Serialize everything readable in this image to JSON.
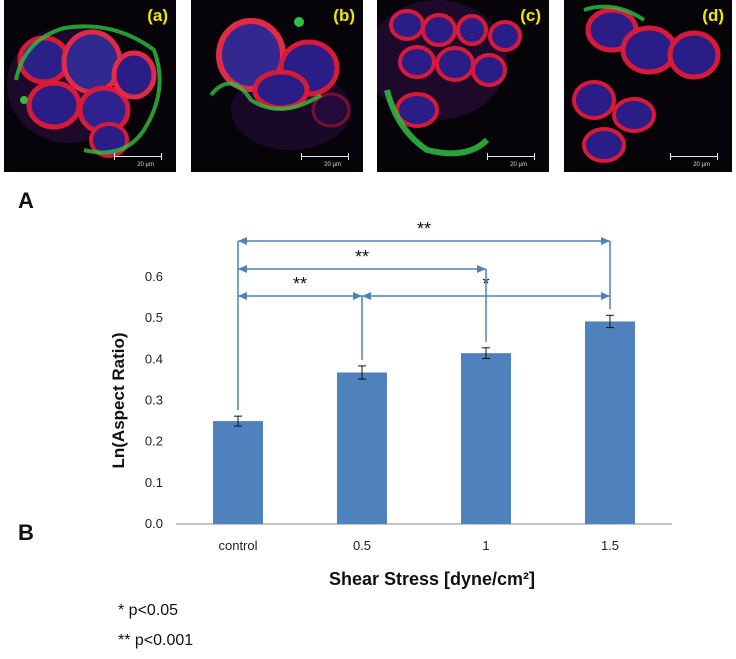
{
  "micrographs": [
    {
      "label": "(a)",
      "scale_text": "20 µm"
    },
    {
      "label": "(b)",
      "scale_text": "20 µm"
    },
    {
      "label": "(c)",
      "scale_text": "20 µm"
    },
    {
      "label": "(d)",
      "scale_text": "20 µm"
    }
  ],
  "panel_letters": {
    "A": "A",
    "B": "B"
  },
  "colors": {
    "bar": "#4f81bd",
    "bracket": "#4f81bd",
    "nucleus": "#3a2a9e",
    "membrane": "#e0203a",
    "actin": "#28c040",
    "label": "#f2e600"
  },
  "chart_data": {
    "type": "bar",
    "categories": [
      "control",
      "0.5",
      "1",
      "1.5"
    ],
    "values": [
      0.25,
      0.368,
      0.415,
      0.492
    ],
    "errors": [
      0.012,
      0.016,
      0.013,
      0.015
    ],
    "title": "",
    "xlabel": "Shear Stress [dyne/cm²]",
    "ylabel": "Ln(Aspect Ratio)",
    "ylim": [
      0,
      0.6
    ],
    "yticks": [
      "0.0",
      "0.1",
      "0.2",
      "0.3",
      "0.4",
      "0.5",
      "0.6"
    ],
    "grid": false,
    "significance": [
      {
        "from": 0,
        "to": 1,
        "label": "**"
      },
      {
        "from": 1,
        "to": 3,
        "label": "*"
      },
      {
        "from": 0,
        "to": 2,
        "label": "**"
      },
      {
        "from": 0,
        "to": 3,
        "label": "**"
      }
    ]
  },
  "legend_notes": [
    "* p<0.05",
    "** p<0.001"
  ]
}
